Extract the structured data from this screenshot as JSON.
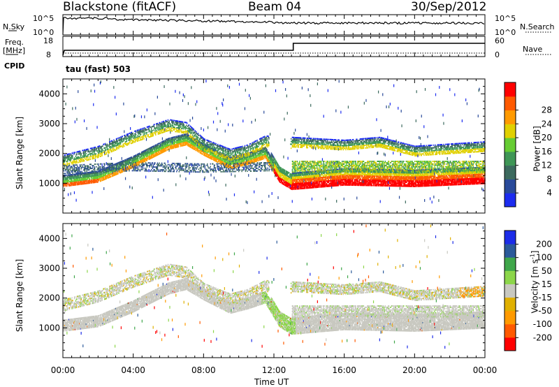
{
  "header": {
    "station": "Blackstone (fitACF)",
    "beam": "Beam 04",
    "date": "30/Sep/2012"
  },
  "sky_panel": {
    "left_label": "N.Sky",
    "left_ticks": [
      "10^5",
      "10^0"
    ],
    "right_label": "N.Search",
    "right_ticks": [
      "10^5",
      "10^0"
    ]
  },
  "freq_panel": {
    "left_label_1": "Freq.",
    "left_label_2": "[MHz]",
    "left_ticks": [
      "18",
      "8"
    ],
    "right_label": "Nave",
    "right_ticks": [
      "60",
      "0"
    ]
  },
  "cpid_label": "CPID",
  "cpid_value": "tau (fast) 503",
  "x_axis": {
    "ticks": [
      "00:00",
      "04:00",
      "08:00",
      "12:00",
      "16:00",
      "20:00",
      "00:00"
    ],
    "label": "Time UT"
  },
  "colors": {
    "power_scale": [
      "#1c2cf0",
      "#294a9a",
      "#3c6a5e",
      "#3f9656",
      "#66cc33",
      "#e0d000",
      "#ff9a00",
      "#ff5a00",
      "#ff0000"
    ],
    "velocity_scale": [
      "#ff0000",
      "#ff5a00",
      "#ff9a00",
      "#e0b000",
      "#c8c8c0",
      "#8cd64a",
      "#3fa64a",
      "#2b5a9a",
      "#1c2ce8"
    ]
  },
  "chart_data": [
    {
      "type": "heatmap",
      "title": "",
      "xlabel": "",
      "ylabel": "Slant Range [km]",
      "x_range_hours": [
        0,
        24
      ],
      "ylim": [
        0,
        4500
      ],
      "yticks": [
        "1000",
        "2000",
        "3000",
        "4000"
      ],
      "colorbar": {
        "label": "Power [dB]",
        "ticks": [
          "4",
          "8",
          "12",
          "16",
          "20",
          "24",
          "28"
        ],
        "range": [
          0,
          32
        ]
      },
      "features": [
        {
          "name": "main echo band",
          "x": [
            0,
            2,
            4,
            6,
            7,
            8,
            9.5,
            10.5,
            11.5,
            12.3,
            13,
            16,
            20,
            24
          ],
          "y": [
            950,
            1100,
            1600,
            2200,
            2350,
            2000,
            1550,
            1700,
            1900,
            1100,
            850,
            1000,
            950,
            1050
          ]
        },
        {
          "name": "upper echo band",
          "x": [
            0,
            2,
            4,
            6,
            7,
            8,
            9.5,
            10.5,
            11.5,
            13,
            16,
            18,
            20,
            24
          ],
          "y": [
            1800,
            2100,
            2600,
            3000,
            2900,
            2350,
            2000,
            2150,
            2450,
            2400,
            2300,
            2400,
            2100,
            2250
          ]
        }
      ]
    },
    {
      "type": "heatmap",
      "title": "",
      "xlabel": "Time UT",
      "ylabel": "Slant Range [km]",
      "x_range_hours": [
        0,
        24
      ],
      "ylim": [
        0,
        4500
      ],
      "yticks": [
        "1000",
        "2000",
        "3000",
        "4000"
      ],
      "colorbar": {
        "label": "Velocity [m s-1]",
        "ticks": [
          "200",
          "100",
          "50",
          "15",
          "-15",
          "-50",
          "-100",
          "-200"
        ],
        "range": [
          -250,
          250
        ]
      }
    },
    {
      "type": "line",
      "title": "",
      "name": "N.Sky",
      "x_range_hours": [
        0,
        24
      ],
      "note_scale": "log 10^0 to 10^5"
    }
  ]
}
